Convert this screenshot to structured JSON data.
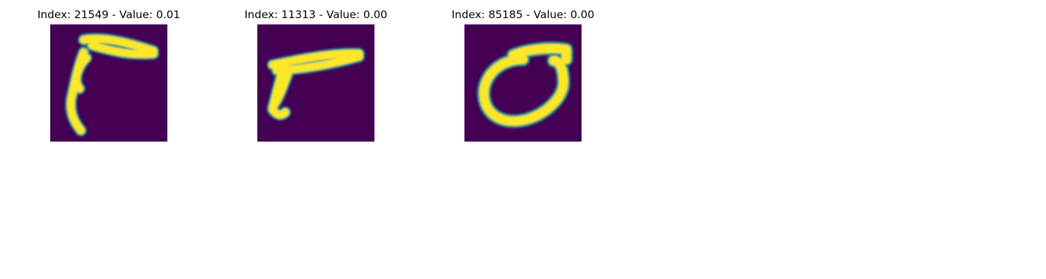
{
  "panels": [
    {
      "title": "Index: 21549 - Value: 0.01"
    },
    {
      "title": "Index: 11313 - Value: 0.00"
    },
    {
      "title": "Index: 85185 - Value: 0.00"
    }
  ],
  "colors": {
    "background": "#440154",
    "mid": "#21918c",
    "high": "#fde725"
  }
}
